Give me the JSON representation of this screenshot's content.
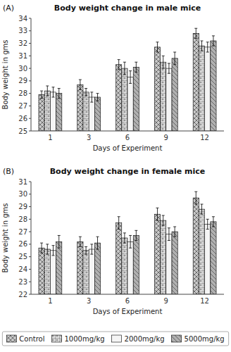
{
  "chart_data": [
    {
      "type": "bar",
      "title": "Body weight change in male mice",
      "x_label": "Days of Experiment",
      "y_label": "Body weight in gms",
      "annotations": [
        "(A)"
      ],
      "categories": [
        "1",
        "3",
        "6",
        "9",
        "12"
      ],
      "series": [
        {
          "name": "Control",
          "color": "#c8c8c8",
          "values": [
            27.9,
            28.7,
            30.3,
            31.7,
            32.8
          ],
          "errors": [
            0.3,
            0.4,
            0.4,
            0.4,
            0.4
          ]
        },
        {
          "name": "1000mg/kg",
          "color": "#e0e0e0",
          "values": [
            28.2,
            28.1,
            30.0,
            30.5,
            31.8
          ],
          "errors": [
            0.4,
            0.3,
            0.5,
            0.5,
            0.4
          ]
        },
        {
          "name": "2000mg/kg",
          "color": "#f5f5f5",
          "values": [
            28.1,
            27.7,
            29.3,
            30.0,
            31.7
          ],
          "errors": [
            0.4,
            0.4,
            0.5,
            0.4,
            0.4
          ]
        },
        {
          "name": "5000mg/kg",
          "color": "#b0b0b0",
          "values": [
            28.0,
            27.7,
            30.1,
            30.8,
            32.2
          ],
          "errors": [
            0.4,
            0.3,
            0.4,
            0.5,
            0.4
          ]
        }
      ],
      "ylim": [
        25,
        34
      ],
      "yticks": [
        25,
        26,
        27,
        28,
        29,
        30,
        31,
        32,
        33,
        34
      ],
      "grid": false,
      "legend": "bottom"
    },
    {
      "type": "bar",
      "title": "Body weight change in female mice",
      "x_label": "Days of Experiment",
      "y_label": "Body weight in gms",
      "annotations": [
        "(B)"
      ],
      "categories": [
        "1",
        "3",
        "6",
        "9",
        "12"
      ],
      "series": [
        {
          "name": "Control",
          "color": "#c8c8c8",
          "values": [
            25.7,
            26.2,
            27.7,
            28.4,
            29.7
          ],
          "errors": [
            0.4,
            0.4,
            0.5,
            0.5,
            0.5
          ]
        },
        {
          "name": "1000mg/kg",
          "color": "#e0e0e0",
          "values": [
            25.6,
            25.5,
            26.5,
            27.9,
            28.8
          ],
          "errors": [
            0.4,
            0.3,
            0.4,
            0.4,
            0.4
          ]
        },
        {
          "name": "2000mg/kg",
          "color": "#f5f5f5",
          "values": [
            25.5,
            25.6,
            26.2,
            26.8,
            27.6
          ],
          "errors": [
            0.4,
            0.4,
            0.5,
            0.5,
            0.4
          ]
        },
        {
          "name": "5000mg/kg",
          "color": "#b0b0b0",
          "values": [
            26.2,
            26.1,
            26.7,
            27.0,
            27.8
          ],
          "errors": [
            0.5,
            0.5,
            0.4,
            0.4,
            0.4
          ]
        }
      ],
      "ylim": [
        22,
        31
      ],
      "yticks": [
        22,
        23,
        24,
        25,
        26,
        27,
        28,
        29,
        30,
        31
      ],
      "grid": false
    }
  ]
}
